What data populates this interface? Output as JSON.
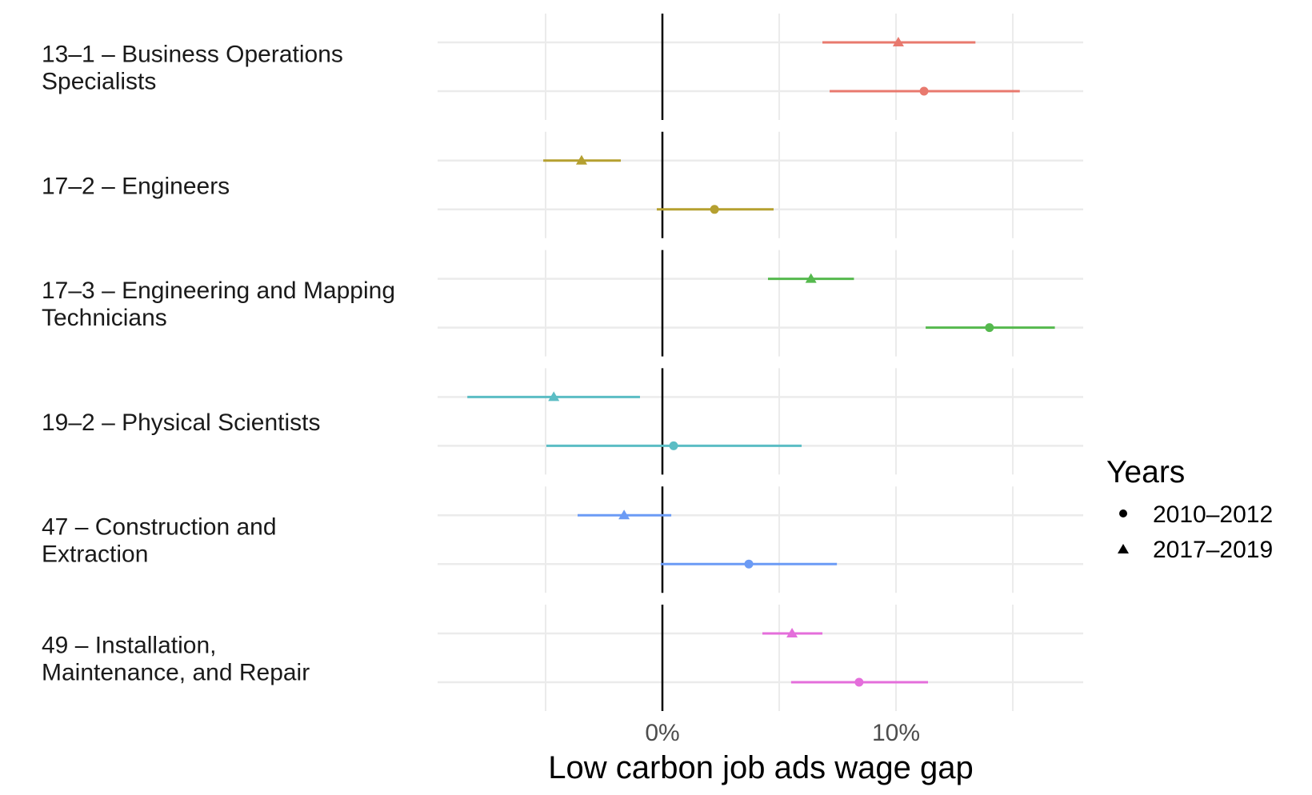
{
  "chart_data": {
    "type": "forest",
    "title": "",
    "xlabel": "Low carbon job ads wage gap",
    "ylabel": "",
    "xlim": [
      -9.5,
      18.2
    ],
    "x_ticks": [
      {
        "value": 0,
        "label": "0%"
      },
      {
        "value": 10,
        "label": "10%"
      }
    ],
    "minor_gridlines": [
      -5,
      5,
      15
    ],
    "reference_line": 0,
    "grid": true,
    "legend": {
      "title": "Years",
      "placement": "right",
      "entries": [
        {
          "label": "2010–2012",
          "shape": "circle"
        },
        {
          "label": "2017–2019",
          "shape": "triangle"
        }
      ]
    },
    "groups": [
      {
        "label_lines": [
          "13–1 – Business Operations",
          "Specialists"
        ],
        "color": "#E8796E",
        "estimates": [
          {
            "period": "2017–2019",
            "shape": "triangle",
            "value": 10.1,
            "low": 6.85,
            "high": 13.4
          },
          {
            "period": "2010–2012",
            "shape": "circle",
            "value": 11.2,
            "low": 7.16,
            "high": 15.3
          }
        ]
      },
      {
        "label_lines": [
          "17–2 – Engineers"
        ],
        "color": "#B5A030",
        "estimates": [
          {
            "period": "2017–2019",
            "shape": "triangle",
            "value": -3.46,
            "low": -5.1,
            "high": -1.78
          },
          {
            "period": "2010–2012",
            "shape": "circle",
            "value": 2.23,
            "low": -0.24,
            "high": 4.76
          }
        ]
      },
      {
        "label_lines": [
          "17–3 – Engineering and Mapping",
          "Technicians"
        ],
        "color": "#55B94E",
        "estimates": [
          {
            "period": "2017–2019",
            "shape": "triangle",
            "value": 6.36,
            "low": 4.52,
            "high": 8.2
          },
          {
            "period": "2010–2012",
            "shape": "circle",
            "value": 14.0,
            "low": 11.27,
            "high": 16.8
          }
        ]
      },
      {
        "label_lines": [
          "19–2 – Physical Scientists"
        ],
        "color": "#5BBDC4",
        "estimates": [
          {
            "period": "2017–2019",
            "shape": "triangle",
            "value": -4.65,
            "low": -8.35,
            "high": -0.96
          },
          {
            "period": "2010–2012",
            "shape": "circle",
            "value": 0.48,
            "low": -4.97,
            "high": 5.96
          }
        ]
      },
      {
        "label_lines": [
          "47 – Construction and",
          "Extraction"
        ],
        "color": "#6B9BF5",
        "estimates": [
          {
            "period": "2017–2019",
            "shape": "triangle",
            "value": -1.64,
            "low": -3.63,
            "high": 0.38
          },
          {
            "period": "2010–2012",
            "shape": "circle",
            "value": 3.7,
            "low": -0.07,
            "high": 7.47
          }
        ]
      },
      {
        "label_lines": [
          "49 – Installation,",
          "Maintenance, and Repair"
        ],
        "color": "#E46EDB",
        "estimates": [
          {
            "period": "2017–2019",
            "shape": "triangle",
            "value": 5.55,
            "low": 4.28,
            "high": 6.85
          },
          {
            "period": "2010–2012",
            "shape": "circle",
            "value": 8.42,
            "low": 5.51,
            "high": 11.37
          }
        ]
      }
    ]
  }
}
